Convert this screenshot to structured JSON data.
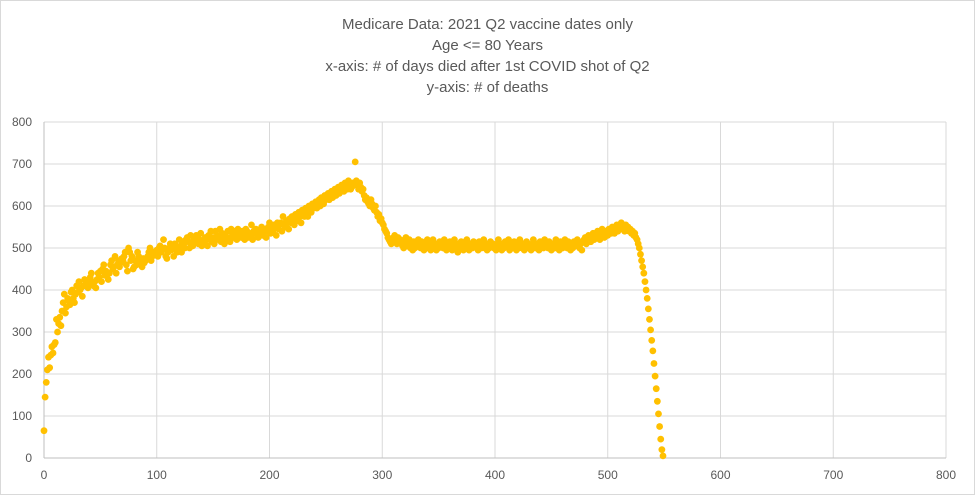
{
  "chart_data": {
    "type": "scatter",
    "title_lines": [
      "Medicare Data: 2021 Q2 vaccine dates only",
      "Age <= 80 Years",
      "x-axis: # of days died after 1st COVID shot of Q2",
      "y-axis: # of deaths"
    ],
    "xlim": [
      0,
      800
    ],
    "ylim": [
      0,
      800
    ],
    "x_ticks": [
      "0",
      "100",
      "200",
      "300",
      "400",
      "500",
      "600",
      "700",
      "800"
    ],
    "y_ticks": [
      "0",
      "100",
      "200",
      "300",
      "400",
      "500",
      "600",
      "700",
      "800"
    ],
    "grid": true,
    "legend": "none",
    "marker_color": "#FFC000",
    "series": [
      {
        "values_y": [
          65,
          145,
          180,
          210,
          240,
          215,
          245,
          265,
          250,
          270,
          275,
          330,
          300,
          320,
          335,
          315,
          350,
          370,
          390,
          345,
          360,
          380,
          375,
          365,
          395,
          400,
          380,
          370,
          390,
          410,
          395,
          420,
          400,
          405,
          385,
          410,
          425,
          420,
          415,
          405,
          420,
          430,
          440,
          415,
          410,
          420,
          405,
          425,
          440,
          430,
          445,
          420,
          450,
          460,
          435,
          445,
          440,
          425,
          440,
          460,
          470,
          450,
          455,
          480,
          440,
          460,
          470,
          455,
          465,
          475,
          470,
          480,
          490,
          460,
          445,
          500,
          490,
          470,
          480,
          450,
          455,
          470,
          460,
          490,
          480,
          470,
          460,
          455,
          475,
          465,
          470,
          475,
          480,
          490,
          500,
          470,
          480,
          490,
          485,
          490,
          495,
          480,
          500,
          505,
          490,
          495,
          520,
          500,
          480,
          475,
          490,
          500,
          510,
          495,
          500,
          480,
          510,
          505,
          490,
          500,
          520,
          505,
          490,
          515,
          510,
          500,
          520,
          525,
          515,
          500,
          530,
          510,
          505,
          520,
          515,
          530,
          525,
          510,
          520,
          535,
          505,
          515,
          510,
          525,
          520,
          505,
          530,
          520,
          540,
          515,
          525,
          510,
          540,
          520,
          530,
          525,
          545,
          515,
          535,
          520,
          510,
          530,
          525,
          540,
          520,
          515,
          545,
          530,
          525,
          540,
          530,
          520,
          545,
          530,
          535,
          525,
          540,
          530,
          520,
          545,
          540,
          525,
          535,
          530,
          555,
          520,
          540,
          535,
          545,
          530,
          525,
          540,
          535,
          550,
          530,
          540,
          545,
          525,
          540,
          550,
          560,
          535,
          545,
          540,
          555,
          550,
          530,
          560,
          545,
          555,
          560,
          540,
          575,
          555,
          550,
          565,
          560,
          545,
          570,
          560,
          575,
          565,
          555,
          580,
          570,
          565,
          585,
          575,
          560,
          590,
          580,
          575,
          595,
          585,
          575,
          600,
          590,
          585,
          605,
          595,
          600,
          610,
          595,
          605,
          615,
          600,
          620,
          610,
          605,
          625,
          615,
          620,
          630,
          615,
          625,
          635,
          620,
          630,
          640,
          625,
          635,
          645,
          630,
          640,
          650,
          640,
          635,
          655,
          645,
          640,
          660,
          650,
          640,
          645,
          655,
          650,
          705,
          660,
          650,
          640,
          655,
          645,
          635,
          640,
          625,
          615,
          620,
          610,
          605,
          600,
          615,
          605,
          595,
          590,
          600,
          585,
          575,
          580,
          565,
          570,
          560,
          555,
          545,
          540,
          535,
          525,
          520,
          515,
          510,
          520,
          525,
          530,
          515,
          510,
          525,
          515,
          520,
          510,
          505,
          500,
          515,
          525,
          505,
          510,
          520,
          500,
          505,
          495,
          515,
          500,
          510,
          505,
          520,
          510,
          500,
          515,
          505,
          495,
          510,
          500,
          520,
          515,
          505,
          495,
          510,
          520,
          500,
          505,
          495,
          510,
          500,
          515,
          505,
          510,
          500,
          520,
          505,
          495,
          510,
          500,
          515,
          505,
          495,
          510,
          520,
          505,
          500,
          490,
          510,
          500,
          515,
          505,
          495,
          510,
          500,
          520,
          505,
          495,
          510,
          505,
          500,
          515,
          505,
          510,
          500,
          495,
          515,
          505,
          500,
          510,
          520,
          500,
          505,
          495,
          510,
          500,
          515,
          505,
          510,
          500,
          505,
          495,
          510,
          520,
          500,
          505,
          495,
          510,
          500,
          515,
          505,
          510,
          520,
          495,
          505,
          500,
          510,
          515,
          505,
          495,
          510,
          500,
          520,
          505,
          500,
          510,
          495,
          505,
          515,
          510,
          500,
          505,
          495,
          510,
          520,
          505,
          500,
          510,
          505,
          495,
          515,
          505,
          510,
          500,
          520,
          505,
          510,
          500,
          515,
          505,
          495,
          510,
          505,
          500,
          520,
          510,
          505,
          495,
          515,
          505,
          500,
          510,
          520,
          505,
          500,
          515,
          505,
          495,
          510,
          500,
          515,
          505,
          510,
          520,
          505,
          500,
          510,
          495,
          515,
          520,
          525,
          510,
          515,
          530,
          520,
          515,
          525,
          535,
          520,
          530,
          525,
          540,
          530,
          520,
          535,
          545,
          530,
          525,
          540,
          535,
          530,
          545,
          540,
          535,
          550,
          540,
          535,
          545,
          555,
          540,
          550,
          545,
          560,
          545,
          550,
          540,
          555,
          545,
          550,
          540,
          545,
          535,
          540,
          530,
          535,
          525,
          520,
          510,
          500,
          485,
          470,
          455,
          440,
          420,
          400,
          380,
          355,
          330,
          305,
          280,
          255,
          225,
          195,
          165,
          135,
          105,
          75,
          45,
          20,
          5
        ]
      }
    ]
  }
}
